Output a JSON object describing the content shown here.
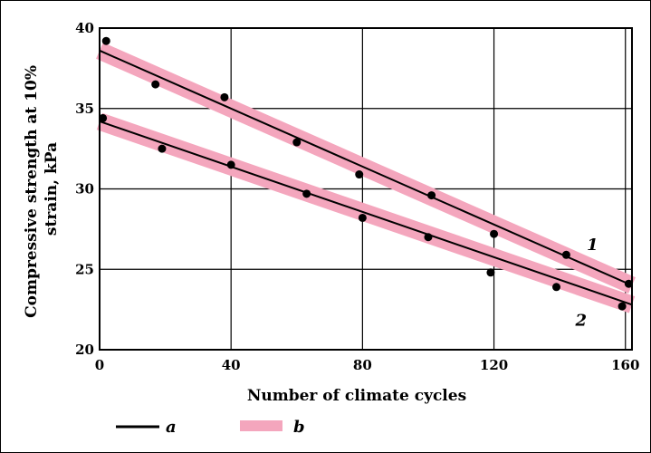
{
  "chart_data": {
    "type": "line",
    "title": "",
    "xlabel": "Number of climate cycles",
    "ylabel_lines": [
      "Compressive strength at 10%",
      "strain, kPa"
    ],
    "xlim": [
      0,
      162
    ],
    "ylim": [
      20,
      40
    ],
    "x_ticks": [
      "0",
      "40",
      "80",
      "120",
      "160"
    ],
    "x_tick_values": [
      0,
      40,
      80,
      120,
      160
    ],
    "y_ticks": [
      "20",
      "25",
      "30",
      "35",
      "40"
    ],
    "y_tick_values": [
      20,
      25,
      30,
      35,
      40
    ],
    "grid": true,
    "band_halfwidth": 0.55,
    "series": [
      {
        "label": "1",
        "points": [
          [
            2,
            39.2
          ],
          [
            17,
            36.5
          ],
          [
            38,
            35.7
          ],
          [
            60,
            32.9
          ],
          [
            79,
            30.9
          ],
          [
            101,
            29.6
          ],
          [
            120,
            27.2
          ],
          [
            142,
            25.9
          ],
          [
            161,
            24.1
          ]
        ],
        "fit": [
          [
            0,
            38.6
          ],
          [
            162,
            24.0
          ]
        ]
      },
      {
        "label": "2",
        "points": [
          [
            1,
            34.4
          ],
          [
            19,
            32.5
          ],
          [
            40,
            31.5
          ],
          [
            63,
            29.7
          ],
          [
            80,
            28.2
          ],
          [
            100,
            27.0
          ],
          [
            119,
            24.8
          ],
          [
            139,
            23.9
          ],
          [
            159,
            22.7
          ]
        ],
        "fit": [
          [
            0,
            34.2
          ],
          [
            162,
            22.8
          ]
        ]
      }
    ],
    "legend": [
      {
        "key": "line",
        "text": "a",
        "color": "#000000"
      },
      {
        "key": "band",
        "text": "b",
        "color": "#f4a6bd"
      }
    ],
    "colors": {
      "line": "#000000",
      "band": "#f4a6bd",
      "point": "#000000"
    }
  }
}
